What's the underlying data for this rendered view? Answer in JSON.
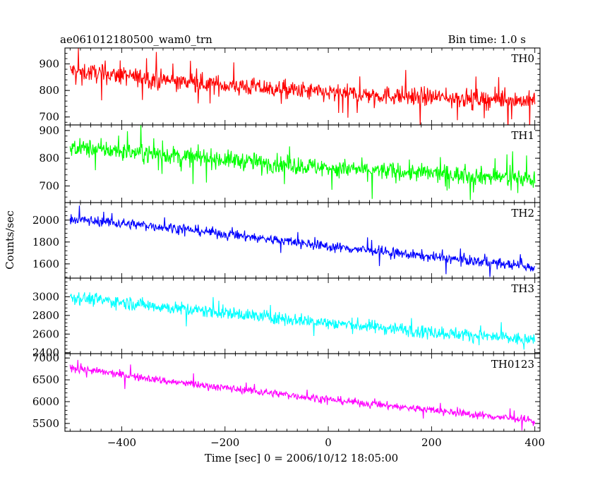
{
  "chart_data": {
    "type": "line",
    "title": "ae061012180500_wam0_trn",
    "bin_time_label": "Bin time: 1.0 s",
    "xlabel": "Time [sec] 0 = 2006/10/12 18:05:00",
    "ylabel": "Counts/sec",
    "xlim": [
      -510,
      410
    ],
    "x_ticks": [
      -400,
      -200,
      0,
      200,
      400
    ],
    "x_tick_labels": [
      "−400",
      "−200",
      "0",
      "200",
      "400"
    ],
    "x_range": [
      -500,
      400
    ],
    "panels": [
      {
        "name": "TH0",
        "color": "#ff0000",
        "ylim": [
          670,
          960
        ],
        "y_ticks": [
          700,
          800,
          900
        ],
        "y_tick_labels": [
          "700",
          "800",
          "900"
        ],
        "trend": [
          {
            "x": -500,
            "y": 875
          },
          {
            "x": -300,
            "y": 835
          },
          {
            "x": 0,
            "y": 790
          },
          {
            "x": 400,
            "y": 760
          }
        ],
        "noise": 32,
        "spikes": 24
      },
      {
        "name": "TH1",
        "color": "#00ff00",
        "ylim": [
          640,
          920
        ],
        "y_ticks": [
          700,
          800,
          900
        ],
        "y_tick_labels": [
          "700",
          "800",
          "900"
        ],
        "trend": [
          {
            "x": -500,
            "y": 840
          },
          {
            "x": -300,
            "y": 810
          },
          {
            "x": 0,
            "y": 765
          },
          {
            "x": 400,
            "y": 725
          }
        ],
        "noise": 30,
        "spikes": 22
      },
      {
        "name": "TH2",
        "color": "#0000ff",
        "ylim": [
          1470,
          2160
        ],
        "y_ticks": [
          1600,
          1800,
          2000
        ],
        "y_tick_labels": [
          "1600",
          "1800",
          "2000"
        ],
        "trend": [
          {
            "x": -500,
            "y": 2010
          },
          {
            "x": -300,
            "y": 1930
          },
          {
            "x": 0,
            "y": 1760
          },
          {
            "x": 400,
            "y": 1570
          }
        ],
        "noise": 42,
        "spikes": 14
      },
      {
        "name": "TH3",
        "color": "#00ffff",
        "ylim": [
          2390,
          3200
        ],
        "y_ticks": [
          2400,
          2600,
          2800,
          3000
        ],
        "y_tick_labels": [
          "2400",
          "2600",
          "2800",
          "3000"
        ],
        "trend": [
          {
            "x": -500,
            "y": 3000
          },
          {
            "x": -300,
            "y": 2880
          },
          {
            "x": 0,
            "y": 2720
          },
          {
            "x": 400,
            "y": 2530
          }
        ],
        "noise": 65,
        "spikes": 14
      },
      {
        "name": "TH0123",
        "color": "#ff00ff",
        "ylim": [
          5320,
          7100
        ],
        "y_ticks": [
          5500,
          6000,
          6500,
          7000
        ],
        "y_tick_labels": [
          "5500",
          "6000",
          "6500",
          "7000"
        ],
        "trend": [
          {
            "x": -500,
            "y": 6780
          },
          {
            "x": -300,
            "y": 6450
          },
          {
            "x": 0,
            "y": 6050
          },
          {
            "x": 400,
            "y": 5560
          }
        ],
        "noise": 80,
        "spikes": 14
      }
    ]
  }
}
